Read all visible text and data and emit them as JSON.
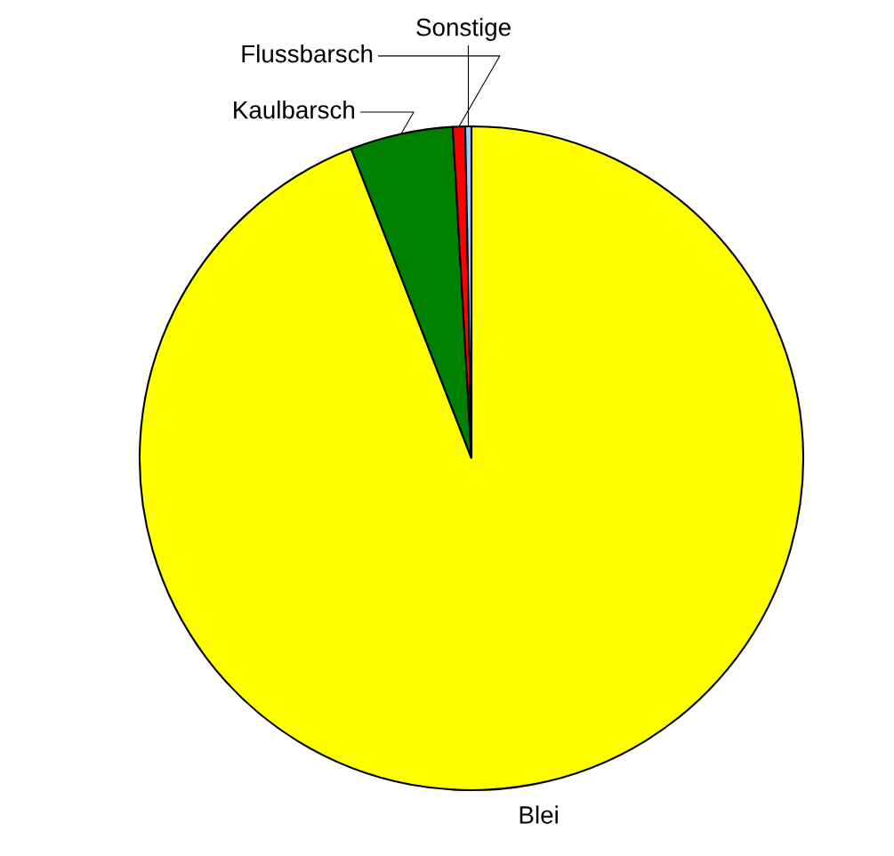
{
  "chart_data": {
    "type": "pie",
    "categories": [
      "Blei",
      "Kaulbarsch",
      "Flussbarsch",
      "Sonstige"
    ],
    "values": [
      94.1,
      5.0,
      0.6,
      0.3
    ],
    "colors": [
      "#ffff00",
      "#008000",
      "#ff0000",
      "#99ccff"
    ]
  }
}
